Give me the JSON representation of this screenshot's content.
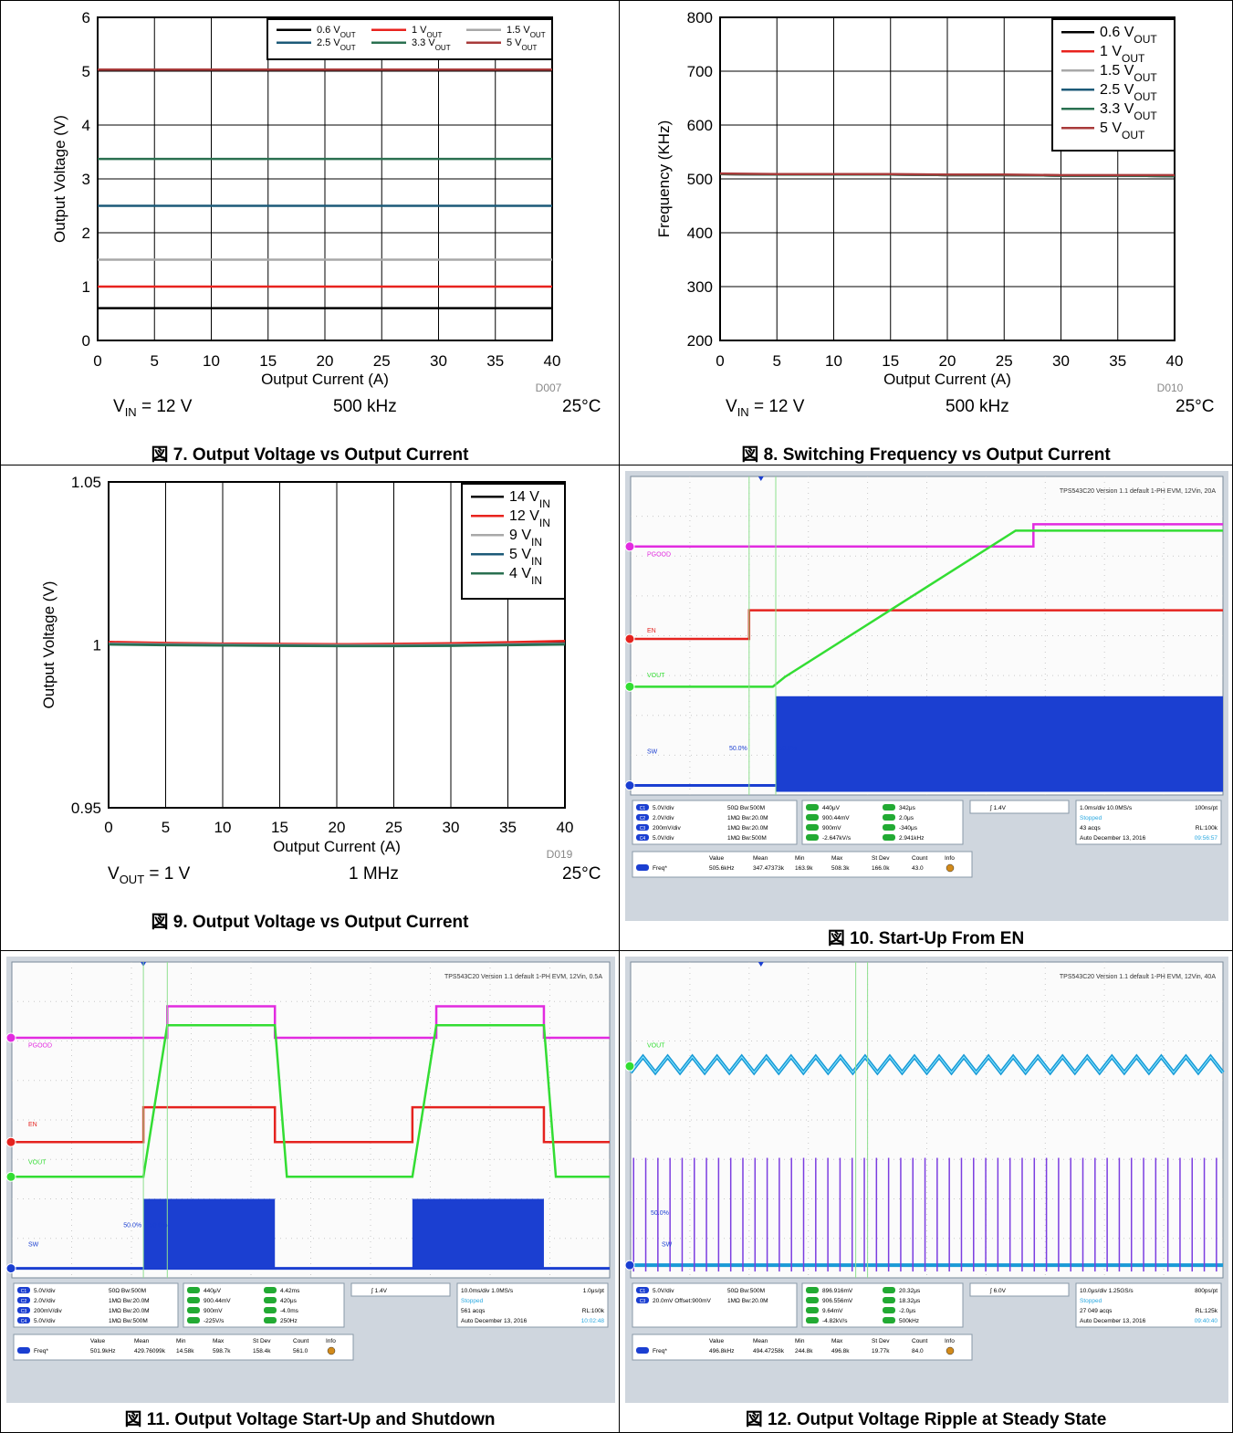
{
  "figures": [
    {
      "caption": "図 7. Output Voltage vs Output Current",
      "conditions": {
        "vin_prefix": "V",
        "vin_sub": "IN",
        "vin_value": " = 12 V",
        "freq": "500 kHz",
        "temp": "25°C"
      }
    },
    {
      "caption": "図 8. Switching Frequency vs Output Current",
      "conditions": {
        "vin_prefix": "V",
        "vin_sub": "IN",
        "vin_value": " = 12 V",
        "freq": "500 kHz",
        "temp": "25°C"
      }
    },
    {
      "caption": "図 9. Output Voltage vs Output Current",
      "conditions": {
        "vin_prefix": "V",
        "vin_sub": "OUT",
        "vin_value": " = 1 V",
        "freq": "1 MHz",
        "temp": "25°C"
      }
    },
    {
      "caption": "図 10. Start-Up From EN"
    },
    {
      "caption": "図 11. Output Voltage Start-Up and Shutdown"
    },
    {
      "caption": "図 12. Output Voltage Ripple at Steady State"
    }
  ],
  "chart_data": [
    {
      "type": "line",
      "id": "fig7",
      "title": "",
      "xlabel": "Output Current (A)",
      "ylabel": "Output Voltage (V)",
      "code": "D007",
      "xlim": [
        0,
        40
      ],
      "ylim": [
        0,
        6
      ],
      "xticks": [
        0,
        5,
        10,
        15,
        20,
        25,
        30,
        35,
        40
      ],
      "yticks": [
        0,
        1,
        2,
        3,
        4,
        5,
        6
      ],
      "ytick_labels": [
        "0",
        "1",
        "2",
        "3",
        "4",
        "5",
        "6"
      ],
      "grid": true,
      "legend_position": "top-right",
      "legend_columns": 3,
      "x": [
        0,
        40
      ],
      "series": [
        {
          "name": "0.6 V",
          "name_sub": "OUT",
          "color": "#000000",
          "values": [
            0.6,
            0.6
          ]
        },
        {
          "name": "1 V",
          "name_sub": "OUT",
          "color": "#e8231e",
          "values": [
            1.0,
            1.0
          ]
        },
        {
          "name": "1.5 V",
          "name_sub": "OUT",
          "color": "#a8a8a8",
          "values": [
            1.5,
            1.5
          ]
        },
        {
          "name": "2.5 V",
          "name_sub": "OUT",
          "color": "#1c5a78",
          "values": [
            2.5,
            2.5
          ]
        },
        {
          "name": "3.3 V",
          "name_sub": "OUT",
          "color": "#2a7050",
          "values": [
            3.37,
            3.37
          ]
        },
        {
          "name": "5 V",
          "name_sub": "OUT",
          "color": "#a83a3a",
          "values": [
            5.03,
            5.03
          ]
        }
      ]
    },
    {
      "type": "line",
      "id": "fig8",
      "title": "",
      "xlabel": "Output Current (A)",
      "ylabel": "Frequency (KHz)",
      "code": "D010",
      "xlim": [
        0,
        40
      ],
      "ylim": [
        200,
        800
      ],
      "xticks": [
        0,
        5,
        10,
        15,
        20,
        25,
        30,
        35,
        40
      ],
      "yticks": [
        200,
        300,
        400,
        500,
        600,
        700,
        800
      ],
      "ytick_labels": [
        "200",
        "300",
        "400",
        "500",
        "600",
        "700",
        "800"
      ],
      "grid": true,
      "legend_position": "top-right",
      "legend_columns": 1,
      "x": [
        0,
        5,
        10,
        15,
        20,
        25,
        30,
        35,
        40
      ],
      "series": [
        {
          "name": "0.6 V",
          "name_sub": "OUT",
          "color": "#000000",
          "values": [
            509,
            508,
            508,
            508,
            507,
            507,
            506,
            506,
            505
          ]
        },
        {
          "name": "1 V",
          "name_sub": "OUT",
          "color": "#e8231e",
          "values": [
            509,
            508,
            508,
            508,
            507,
            507,
            506,
            506,
            505
          ]
        },
        {
          "name": "1.5 V",
          "name_sub": "OUT",
          "color": "#a8a8a8",
          "values": [
            509,
            508,
            508,
            508,
            507,
            507,
            506,
            506,
            505
          ]
        },
        {
          "name": "2.5 V",
          "name_sub": "OUT",
          "color": "#1c5a78",
          "values": [
            509,
            508,
            508,
            508,
            507,
            507,
            506,
            506,
            505
          ]
        },
        {
          "name": "3.3 V",
          "name_sub": "OUT",
          "color": "#2a7050",
          "values": [
            509,
            508,
            508,
            508,
            507,
            507,
            506,
            506,
            505
          ]
        },
        {
          "name": "5 V",
          "name_sub": "OUT",
          "color": "#a83a3a",
          "values": [
            510,
            509,
            509,
            509,
            508,
            508,
            507,
            507,
            507
          ]
        }
      ]
    },
    {
      "type": "line",
      "id": "fig9",
      "title": "",
      "xlabel": "Output Current (A)",
      "ylabel": "Output Voltage (V)",
      "code": "D019",
      "xlim": [
        0,
        40
      ],
      "ylim": [
        0.95,
        1.05
      ],
      "xticks": [
        0,
        5,
        10,
        15,
        20,
        25,
        30,
        35,
        40
      ],
      "yticks": [
        0.95,
        1.0,
        1.05
      ],
      "ytick_labels": [
        "0.95",
        "1",
        "1.05"
      ],
      "grid": true,
      "legend_position": "top-right",
      "legend_columns": 1,
      "x": [
        0,
        5,
        10,
        15,
        20,
        25,
        30,
        35,
        40
      ],
      "series": [
        {
          "name": "14 V",
          "name_sub": "IN",
          "color": "#000000",
          "values": [
            1.0008,
            1.0005,
            1.0003,
            1.0002,
            1.0001,
            1.0001,
            1.0002,
            1.0005,
            1.0008
          ]
        },
        {
          "name": "12 V",
          "name_sub": "IN",
          "color": "#e8231e",
          "values": [
            1.0009,
            1.0006,
            1.0004,
            1.0003,
            1.0002,
            1.0003,
            1.0005,
            1.0008,
            1.0012
          ]
        },
        {
          "name": "9 V",
          "name_sub": "IN",
          "color": "#a8a8a8",
          "values": [
            1.0004,
            1.0002,
            1.0001,
            1.0,
            0.9999,
            0.9999,
            1.0,
            1.0002,
            1.0004
          ]
        },
        {
          "name": "5 V",
          "name_sub": "IN",
          "color": "#1c5a78",
          "values": [
            1.0002,
            1.0,
            0.9999,
            0.9998,
            0.9997,
            0.9997,
            0.9998,
            1.0,
            1.0002
          ]
        },
        {
          "name": "4 V",
          "name_sub": "IN",
          "color": "#2a7050",
          "values": [
            1.0001,
            0.9999,
            0.9998,
            0.9997,
            0.9996,
            0.9996,
            0.9997,
            0.9999,
            1.0001
          ]
        }
      ]
    }
  ],
  "scopes": [
    {
      "id": "fig10",
      "header": "TPS543C20 Version 1.1   default 1-PH EVM, 12Vin, 20A",
      "ch_labels": [
        "PGOOD",
        "EN",
        "VOUT",
        "SW"
      ],
      "panel_a": [
        [
          "C1",
          "5.0V/div",
          "50Ω  Bw:500M"
        ],
        [
          "C2",
          "2.0V/div",
          "1MΩ  Bw:20.0M"
        ],
        [
          "C3",
          "200mV/div",
          "1MΩ  Bw:20.0M"
        ],
        [
          "C4",
          "5.0V/div",
          "1MΩ  Bw:500M"
        ]
      ],
      "panel_b": [
        "440μV",
        "900.44mV",
        "900mV",
        "-2.647kV/s"
      ],
      "panel_c": [
        "342μs",
        "2.0μs",
        "-340μs",
        "2.941kHz"
      ],
      "trigger": "1.4V",
      "timing": {
        "tdiv": "1.0ms/div  10.0MS/s",
        "pts": "100ns/pt",
        "status": "Stopped",
        "acqs": "43 acqs",
        "rl": "RL:100k",
        "mode": "Auto",
        "date": "December 13, 2016",
        "time": "09:56:57"
      },
      "stats_headers": [
        "Value",
        "Mean",
        "Min",
        "Max",
        "St Dev",
        "Count",
        "Info"
      ],
      "stats": [
        "Freq*",
        "505.6kHz",
        "347.47373k",
        "163.9k",
        "508.3k",
        "166.0k",
        "43.0"
      ],
      "cursors": [
        "50.0%",
        "50.0%"
      ]
    },
    {
      "id": "fig11",
      "header": "TPS543C20 Version 1.1   default 1-PH EVM, 12Vin, 0.5A",
      "ch_labels": [
        "PGOOD",
        "EN",
        "VOUT",
        "SW"
      ],
      "panel_a": [
        [
          "C1",
          "5.0V/div",
          "50Ω  Bw:500M"
        ],
        [
          "C2",
          "2.0V/div",
          "1MΩ  Bw:20.0M"
        ],
        [
          "C3",
          "200mV/div",
          "1MΩ  Bw:20.0M"
        ],
        [
          "C4",
          "5.0V/div",
          "1MΩ  Bw:500M"
        ]
      ],
      "panel_b": [
        "440μV",
        "900.44mV",
        "900mV",
        "-225V/s"
      ],
      "panel_c": [
        "4.42ms",
        "420μs",
        "-4.0ms",
        "250Hz"
      ],
      "trigger": "1.4V",
      "timing": {
        "tdiv": "10.0ms/div  1.0MS/s",
        "pts": "1.0μs/pt",
        "status": "Stopped",
        "acqs": "561 acqs",
        "rl": "RL:100k",
        "mode": "Auto",
        "date": "December 13, 2016",
        "time": "10:02:48"
      },
      "stats_headers": [
        "Value",
        "Mean",
        "Min",
        "Max",
        "St Dev",
        "Count",
        "Info"
      ],
      "stats": [
        "Freq*",
        "501.9kHz",
        "429.76099k",
        "14.58k",
        "598.7k",
        "158.4k",
        "561.0"
      ],
      "cursors": [
        "50.0%",
        "50.0%"
      ]
    },
    {
      "id": "fig12",
      "header": "TPS543C20 Version 1.1   default 1-PH EVM, 12Vin, 40A",
      "ch_labels": [
        "VOUT",
        "SW"
      ],
      "panel_a": [
        [
          "C1",
          "5.0V/div",
          "50Ω  Bw:500M"
        ],
        [
          "C3",
          "20.0mV  Offset:900mV",
          "1MΩ  Bw:20.0M"
        ]
      ],
      "panel_b": [
        "896.916mV",
        "906.556mV",
        "9.64mV",
        "-4.82kV/s"
      ],
      "panel_c": [
        "20.32μs",
        "18.32μs",
        "-2.0μs",
        "500kHz"
      ],
      "trigger": "6.0V",
      "timing": {
        "tdiv": "10.0μs/div  1.25GS/s",
        "pts": "800ps/pt",
        "status": "Stopped",
        "acqs": "27 049 acqs",
        "rl": "RL:125k",
        "mode": "Auto",
        "date": "December 13, 2016",
        "time": "09:40:40"
      },
      "stats_headers": [
        "Value",
        "Mean",
        "Min",
        "Max",
        "St Dev",
        "Count",
        "Info"
      ],
      "stats": [
        "Freq*",
        "496.8kHz",
        "494.47258k",
        "244.8k",
        "496.8k",
        "19.77k",
        "84.0"
      ],
      "cursors": [
        "50.0%"
      ]
    }
  ]
}
